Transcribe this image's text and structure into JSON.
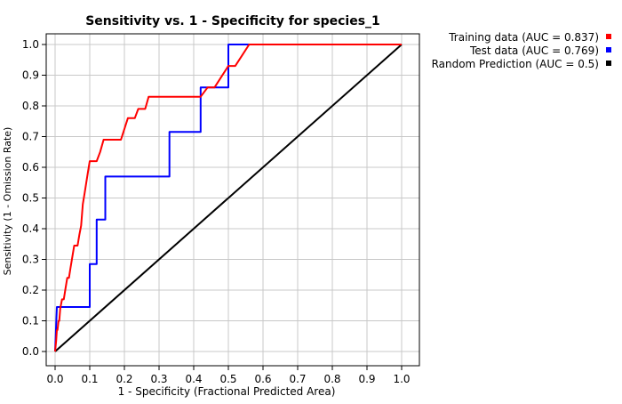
{
  "chart_data": {
    "type": "line",
    "title": "Sensitivity vs. 1 - Specificity for species_1",
    "xlabel": "1 - Specificity  (Fractional Predicted Area)",
    "ylabel": "Sensitivity (1 - Omission Rate)",
    "xlim": [
      0,
      1.0
    ],
    "ylim": [
      0,
      1.0
    ],
    "x_ticks": [
      "0.0",
      "0.1",
      "0.2",
      "0.3",
      "0.4",
      "0.5",
      "0.6",
      "0.7",
      "0.8",
      "0.9",
      "1.0"
    ],
    "y_ticks": [
      "0.0",
      "0.1",
      "0.2",
      "0.3",
      "0.4",
      "0.5",
      "0.6",
      "0.7",
      "0.8",
      "0.9",
      "1.0"
    ],
    "grid": true,
    "legend_position": "top-right outside",
    "series": [
      {
        "name": "Training data (AUC = 0.837)",
        "color": "#ff0000",
        "x": [
          0.0,
          0.003,
          0.005,
          0.007,
          0.01,
          0.012,
          0.015,
          0.02,
          0.025,
          0.03,
          0.035,
          0.04,
          0.045,
          0.05,
          0.055,
          0.06,
          0.065,
          0.07,
          0.075,
          0.08,
          0.085,
          0.09,
          0.095,
          0.1,
          0.11,
          0.12,
          0.13,
          0.14,
          0.15,
          0.16,
          0.17,
          0.18,
          0.19,
          0.2,
          0.21,
          0.22,
          0.23,
          0.24,
          0.25,
          0.26,
          0.27,
          0.28,
          0.3,
          0.32,
          0.34,
          0.36,
          0.38,
          0.4,
          0.42,
          0.44,
          0.46,
          0.48,
          0.5,
          0.52,
          0.54,
          0.56,
          0.58,
          0.6,
          0.65,
          0.7,
          0.75,
          0.8,
          0.85,
          0.9,
          0.95,
          1.0
        ],
        "y": [
          0.0,
          0.035,
          0.07,
          0.07,
          0.1,
          0.1,
          0.14,
          0.17,
          0.17,
          0.205,
          0.24,
          0.24,
          0.275,
          0.31,
          0.345,
          0.345,
          0.345,
          0.38,
          0.41,
          0.48,
          0.515,
          0.55,
          0.585,
          0.62,
          0.62,
          0.62,
          0.65,
          0.69,
          0.69,
          0.69,
          0.69,
          0.69,
          0.69,
          0.725,
          0.76,
          0.76,
          0.76,
          0.79,
          0.79,
          0.79,
          0.83,
          0.83,
          0.83,
          0.83,
          0.83,
          0.83,
          0.83,
          0.83,
          0.83,
          0.86,
          0.86,
          0.895,
          0.93,
          0.93,
          0.965,
          1.0,
          1.0,
          1.0,
          1.0,
          1.0,
          1.0,
          1.0,
          1.0,
          1.0,
          1.0,
          1.0
        ]
      },
      {
        "name": "Test data (AUC = 0.769)",
        "color": "#0000ff",
        "x": [
          0.0,
          0.005,
          0.01,
          0.1,
          0.1,
          0.12,
          0.12,
          0.145,
          0.145,
          0.33,
          0.33,
          0.42,
          0.42,
          0.5,
          0.5,
          1.0
        ],
        "y": [
          0.0,
          0.145,
          0.145,
          0.145,
          0.285,
          0.285,
          0.43,
          0.43,
          0.57,
          0.57,
          0.715,
          0.715,
          0.86,
          0.86,
          1.0,
          1.0
        ]
      },
      {
        "name": "Random Prediction (AUC = 0.5)",
        "color": "#000000",
        "x": [
          0,
          1.0
        ],
        "y": [
          0,
          1.0
        ]
      }
    ]
  }
}
